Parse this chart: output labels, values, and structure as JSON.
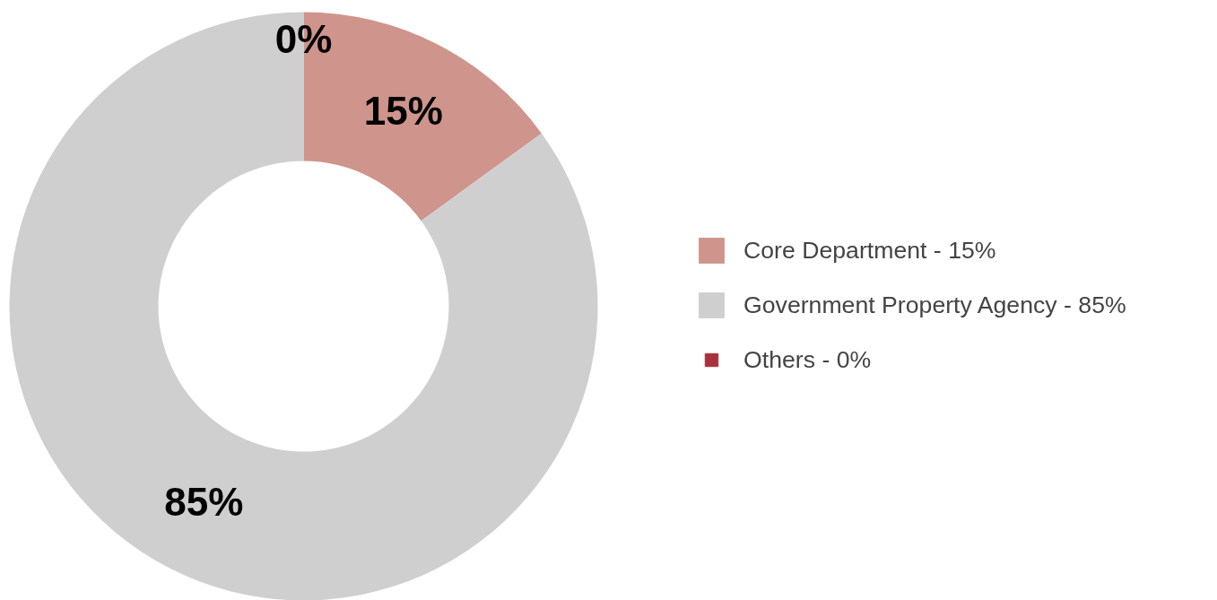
{
  "chart_data": {
    "type": "donut",
    "categories": [
      "Core Department - 15%",
      "Government Property Agency - 85%",
      "Others - 0%"
    ],
    "values": [
      15,
      85,
      0
    ],
    "colors": [
      "#cf948b",
      "#cfcfcf",
      "#a8323b"
    ],
    "value_labels": [
      "15%",
      "85%",
      "0%"
    ],
    "legend": "right"
  }
}
